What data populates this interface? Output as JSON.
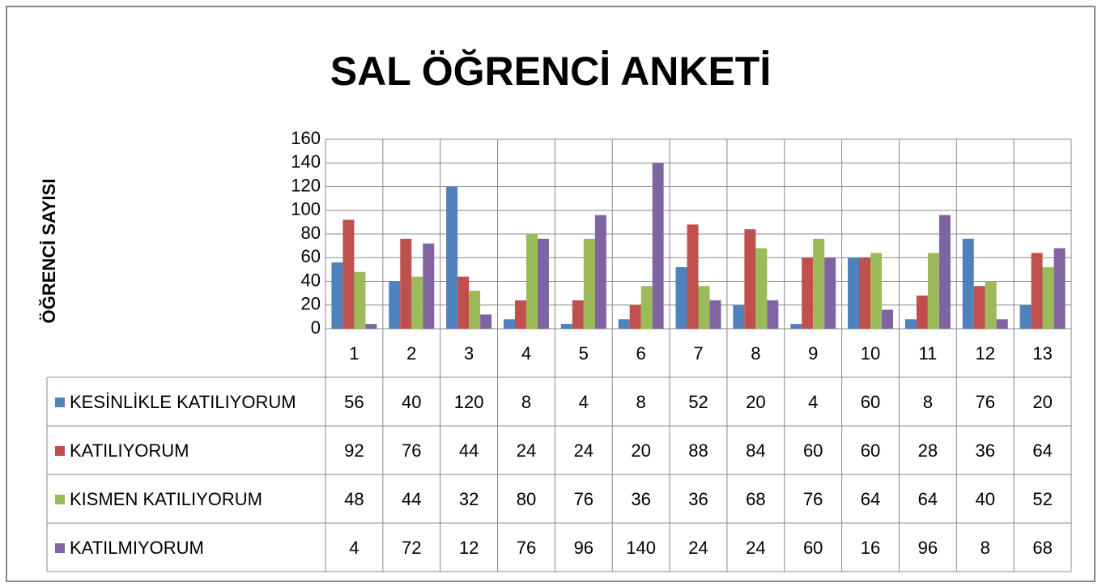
{
  "chart_data": {
    "type": "bar",
    "title": "SAL ÖĞRENCİ ANKETİ",
    "y_label": "ÖĞRENCİ SAYISI",
    "categories": [
      "1",
      "2",
      "3",
      "4",
      "5",
      "6",
      "7",
      "8",
      "9",
      "10",
      "11",
      "12",
      "13"
    ],
    "series": [
      {
        "name": "KESİNLİKLE  KATILIYORUM",
        "color": "#4f81bd",
        "values": [
          56,
          40,
          120,
          8,
          4,
          8,
          52,
          20,
          4,
          60,
          8,
          76,
          20
        ]
      },
      {
        "name": "KATILIYORUM",
        "color": "#c0504d",
        "values": [
          92,
          76,
          44,
          24,
          24,
          20,
          88,
          84,
          60,
          60,
          28,
          36,
          64
        ]
      },
      {
        "name": "KISMEN KATILIYORUM",
        "color": "#9bbb59",
        "values": [
          48,
          44,
          32,
          80,
          76,
          36,
          36,
          68,
          76,
          64,
          64,
          40,
          52
        ]
      },
      {
        "name": "KATILMIYORUM",
        "color": "#8064a2",
        "values": [
          4,
          72,
          12,
          76,
          96,
          140,
          24,
          24,
          60,
          16,
          96,
          8,
          68
        ]
      }
    ],
    "ylim": [
      0,
      160
    ],
    "yticks": [
      0,
      20,
      40,
      60,
      80,
      100,
      120,
      140,
      160
    ],
    "grid": true,
    "data_table": true
  }
}
